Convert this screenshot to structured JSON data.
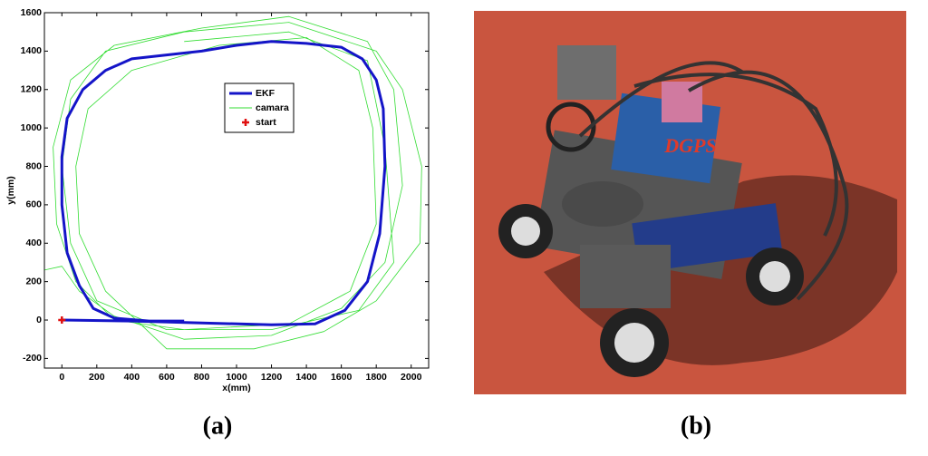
{
  "chart_data": {
    "type": "line",
    "xlabel": "x(mm)",
    "ylabel": "y(mm)",
    "xlim": [
      -100,
      2100
    ],
    "ylim": [
      -250,
      1600
    ],
    "xticks": [
      0,
      200,
      400,
      600,
      800,
      1000,
      1200,
      1400,
      1600,
      1800,
      2000
    ],
    "yticks": [
      -200,
      0,
      200,
      400,
      600,
      800,
      1000,
      1200,
      1400,
      1600
    ],
    "legend": "upper center",
    "series": [
      {
        "name": "EKF",
        "color": "#1414c8",
        "marker": "line",
        "x": [
          0,
          400,
          800,
          1200,
          1450,
          1620,
          1750,
          1820,
          1850,
          1840,
          1800,
          1720,
          1600,
          1400,
          1200,
          1000,
          800,
          600,
          400,
          250,
          120,
          30,
          0,
          0,
          30,
          100,
          180,
          300,
          500,
          700
        ],
        "values": [
          0,
          -5,
          -15,
          -25,
          -20,
          50,
          200,
          450,
          800,
          1100,
          1250,
          1360,
          1420,
          1440,
          1450,
          1430,
          1400,
          1380,
          1360,
          1300,
          1200,
          1050,
          850,
          600,
          350,
          180,
          60,
          10,
          -5,
          -5
        ]
      },
      {
        "name": "camara",
        "color": "#33dd33",
        "marker": "line",
        "x": [
          -100,
          0,
          100,
          300,
          700,
          1200,
          1600,
          1850,
          1950,
          1900,
          1750,
          1300,
          800,
          300,
          50,
          -50,
          -30,
          80,
          300,
          700,
          1300,
          1650,
          1800,
          1780,
          1700,
          1400,
          900,
          400,
          150,
          80,
          100,
          250,
          600,
          1100,
          1500,
          1800,
          2050,
          2060,
          1950,
          1800,
          1300,
          700,
          250,
          50,
          0,
          50,
          200,
          600,
          1200,
          1700,
          1900,
          1850,
          1750,
          1300,
          700
        ],
        "values": [
          260,
          280,
          150,
          20,
          -100,
          -80,
          60,
          300,
          700,
          1200,
          1450,
          1580,
          1520,
          1430,
          1250,
          900,
          500,
          200,
          0,
          -50,
          -20,
          150,
          500,
          1000,
          1300,
          1470,
          1430,
          1300,
          1100,
          800,
          450,
          150,
          -150,
          -150,
          -60,
          100,
          400,
          800,
          1200,
          1400,
          1550,
          1500,
          1400,
          1150,
          800,
          400,
          100,
          -50,
          -50,
          50,
          300,
          900,
          1350,
          1500,
          1450
        ]
      },
      {
        "name": "start",
        "color": "#e01010",
        "marker": "plus",
        "x": [
          0
        ],
        "values": [
          0
        ]
      }
    ]
  },
  "panel_labels": [
    "(a)",
    "(b)"
  ],
  "photo_label": "DGPS"
}
